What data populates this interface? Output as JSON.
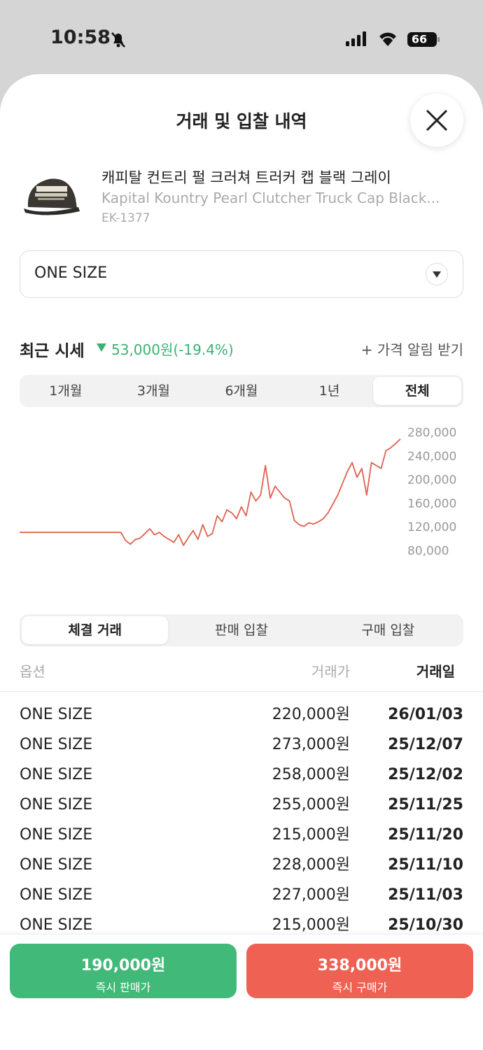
{
  "status_bar": {
    "time": "10:58",
    "battery": "66"
  },
  "sheet": {
    "title": "거래 및 입찰 내역"
  },
  "product": {
    "name_ko": "캐피탈 컨트리 펄 크러쳐 트러커 캡 블랙 그레이",
    "name_en": "Kapital Kountry Pearl Clutcher Truck Cap Black...",
    "code": "EK-1377"
  },
  "size_select": {
    "value": "ONE SIZE"
  },
  "recent_price": {
    "label": "최근 시세",
    "change": "53,000원(-19.4%)",
    "alert": "+ 가격 알림 받기"
  },
  "period_tabs": {
    "items": [
      "1개월",
      "3개월",
      "6개월",
      "1년",
      "전체"
    ],
    "selected": 4
  },
  "chart_data": {
    "type": "line",
    "color": "#e0604f",
    "values": [
      112000,
      112000,
      112000,
      112000,
      112000,
      112000,
      112000,
      112000,
      112000,
      112000,
      112000,
      112000,
      112000,
      112000,
      112000,
      112000,
      112000,
      112000,
      112000,
      112000,
      112000,
      112000,
      98000,
      92000,
      100000,
      102000,
      110000,
      118000,
      108000,
      112000,
      105000,
      100000,
      95000,
      108000,
      90000,
      103000,
      115000,
      100000,
      125000,
      105000,
      110000,
      140000,
      130000,
      150000,
      145000,
      135000,
      155000,
      140000,
      180000,
      165000,
      175000,
      225000,
      170000,
      190000,
      180000,
      170000,
      165000,
      132000,
      125000,
      122000,
      128000,
      126000,
      130000,
      135000,
      145000,
      160000,
      175000,
      195000,
      215000,
      230000,
      205000,
      220000,
      175000,
      230000,
      225000,
      220000,
      250000,
      255000,
      262000,
      270000
    ],
    "ylim": [
      80000,
      280000
    ],
    "yticks": [
      {
        "value": 280000,
        "label": "280,000"
      },
      {
        "value": 240000,
        "label": "240,000"
      },
      {
        "value": 200000,
        "label": "200,000"
      },
      {
        "value": 160000,
        "label": "160,000"
      },
      {
        "value": 120000,
        "label": "120,000"
      },
      {
        "value": 80000,
        "label": "80,000"
      }
    ]
  },
  "trade_tabs": {
    "items": [
      "체결 거래",
      "판매 입찰",
      "구매 입찰"
    ],
    "selected": 0
  },
  "table": {
    "headers": [
      "옵션",
      "거래가",
      "거래일"
    ],
    "rows": [
      {
        "option": "ONE SIZE",
        "price": "220,000원",
        "date": "26/01/03",
        "instant": false
      },
      {
        "option": "ONE SIZE",
        "price": "273,000원",
        "date": "25/12/07",
        "instant": false
      },
      {
        "option": "ONE SIZE",
        "price": "258,000원",
        "date": "25/12/02",
        "instant": true
      },
      {
        "option": "ONE SIZE",
        "price": "255,000원",
        "date": "25/11/25",
        "instant": true
      },
      {
        "option": "ONE SIZE",
        "price": "215,000원",
        "date": "25/11/20",
        "instant": true
      },
      {
        "option": "ONE SIZE",
        "price": "228,000원",
        "date": "25/11/10",
        "instant": true
      },
      {
        "option": "ONE SIZE",
        "price": "227,000원",
        "date": "25/11/03",
        "instant": true
      },
      {
        "option": "ONE SIZE",
        "price": "215,000원",
        "date": "25/10/30",
        "instant": true
      }
    ]
  },
  "buttons": {
    "sell": {
      "price": "190,000원",
      "label": "즉시 판매가"
    },
    "buy": {
      "price": "338,000원",
      "label": "즉시 구매가"
    }
  }
}
